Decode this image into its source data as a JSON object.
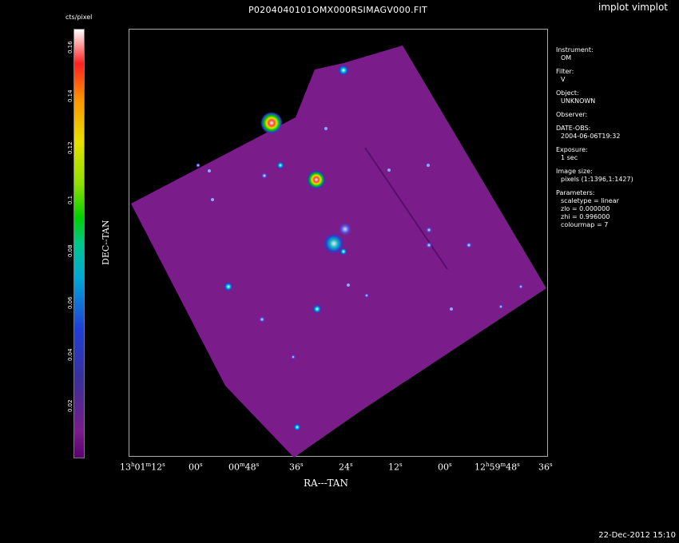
{
  "window": {
    "title": "P0204040101OMX000RSIMAGV000.FIT",
    "tool_label": "implot vimplot",
    "timestamp": "22-Dec-2012 15:10"
  },
  "colorbar": {
    "unit_label": "cts/pixel",
    "ticks": [
      "0.16",
      "0.14",
      "0.12",
      "0.1",
      "0.08",
      "0.06",
      "0.04",
      "0.02"
    ],
    "colormap_colors": [
      "#5a0070",
      "#1f3fd8",
      "#00c88a",
      "#00d000",
      "#e8e000",
      "#ff9000",
      "#ff2020",
      "#ffffff"
    ]
  },
  "axes": {
    "ylabel": "DEC--TAN",
    "xlabel": "RA---TAN",
    "x_ticks": [
      {
        "h": "13",
        "m": "01",
        "s": "12"
      },
      {
        "s": "00"
      },
      {
        "m": "00",
        "s": "48"
      },
      {
        "s": "36"
      },
      {
        "s": "24"
      },
      {
        "s": "12"
      },
      {
        "s": "00"
      },
      {
        "h": "12",
        "m": "59",
        "s": "48"
      },
      {
        "s": "36"
      }
    ]
  },
  "info_panel": {
    "instrument_label": "Instrument:",
    "instrument_value": "OM",
    "filter_label": "Filter:",
    "filter_value": "V",
    "object_label": "Object:",
    "object_value": "UNKNOWN",
    "observer_label": "Observer:",
    "observer_value": "",
    "date_label": "DATE-OBS:",
    "date_value": "2004-06-06T19:32",
    "exposure_label": "Exposure:",
    "exposure_value": "1 sec",
    "image_size_label": "Image size:",
    "image_size_value": "pixels (1:1396,1:1427)",
    "parameters_label": "Parameters:",
    "scaletype": "scaletype = linear",
    "zlo": "zlo = 0.000000",
    "zhi": "zhi = 0.996000",
    "colourmap": "colourmap =   7"
  }
}
